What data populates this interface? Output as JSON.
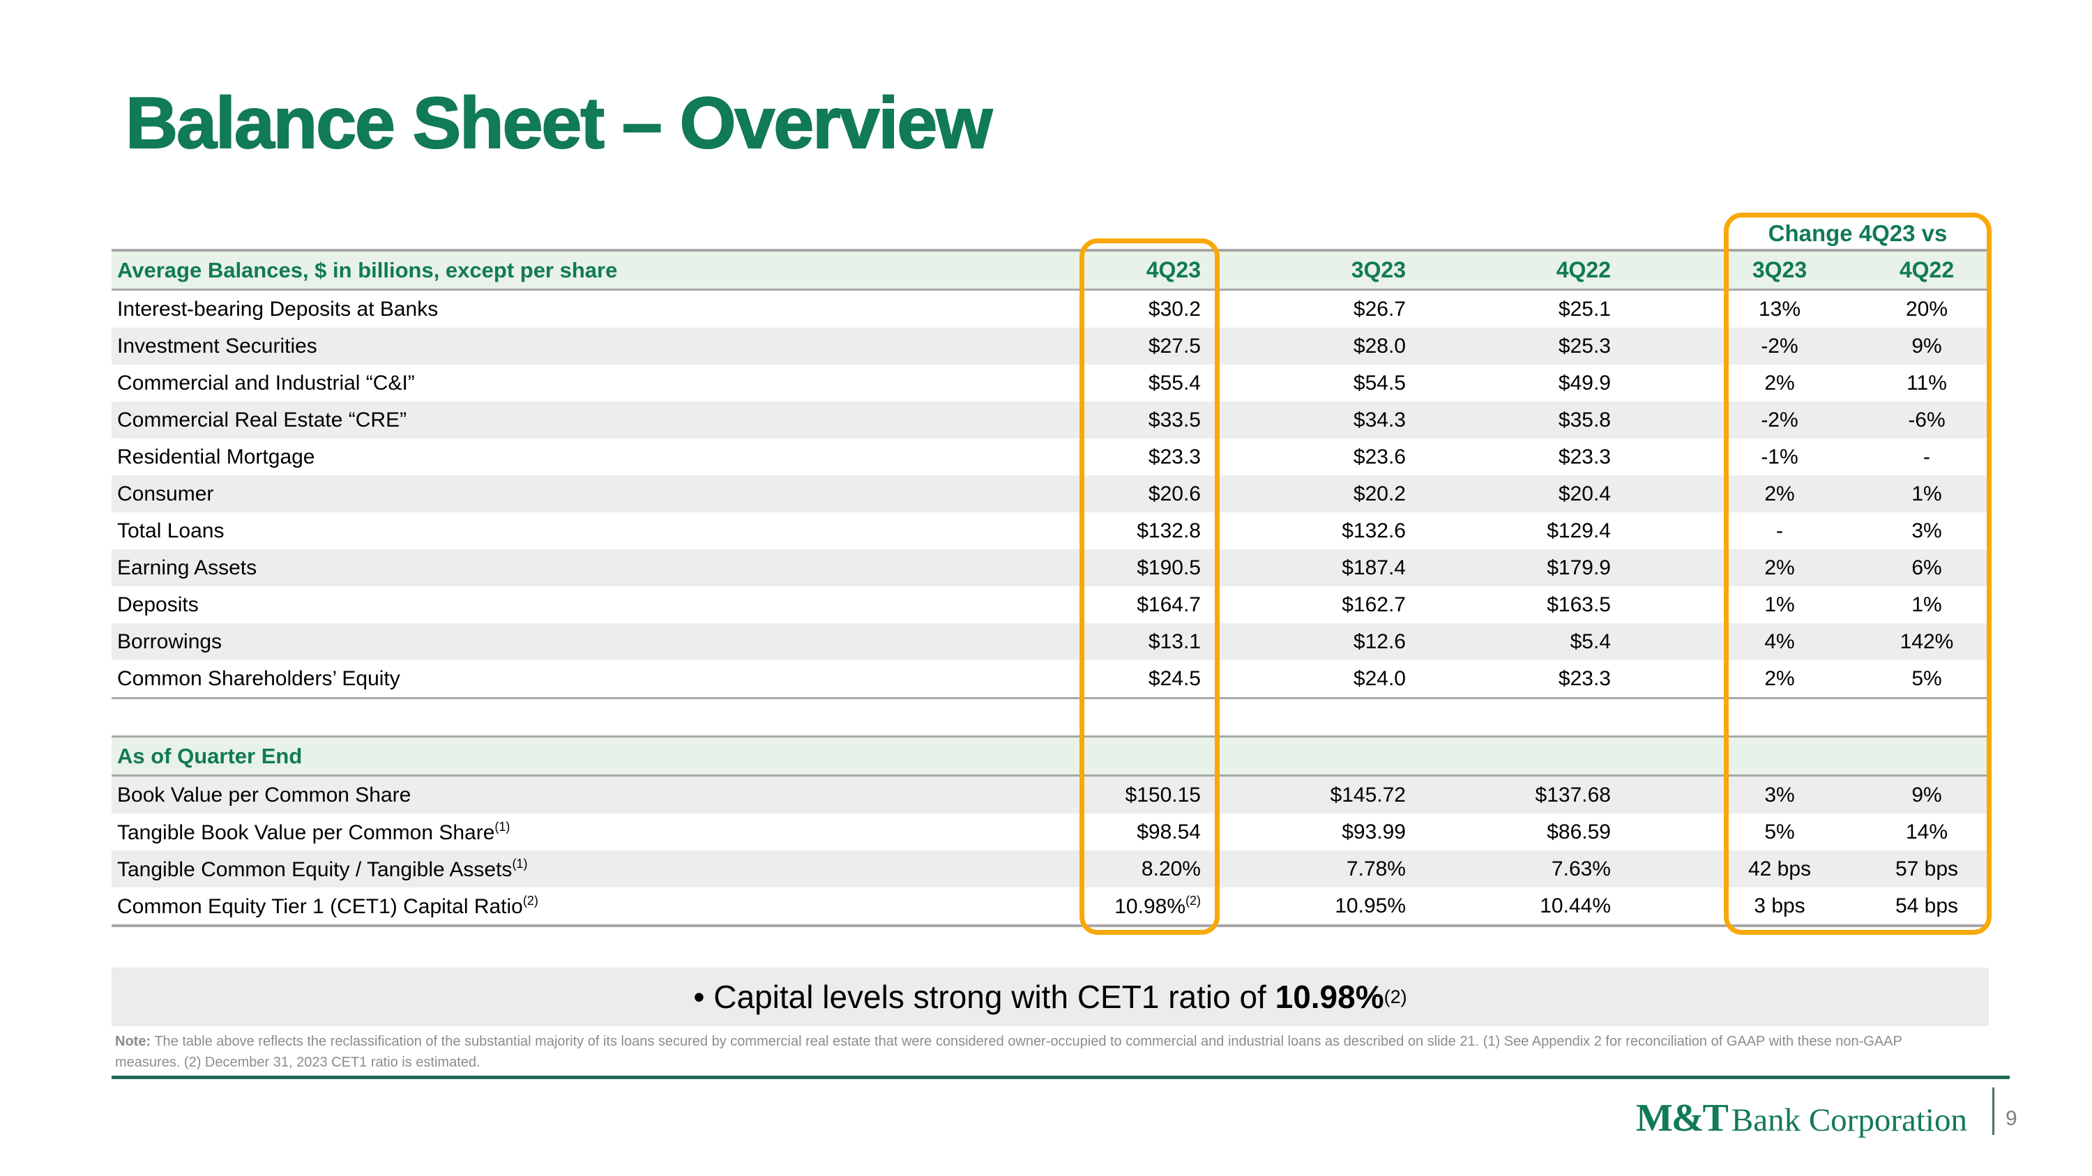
{
  "title": "Balance Sheet – Overview",
  "colors": {
    "brand_green": "#117A56",
    "band_green_bg": "#E8F2E8",
    "row_stripe_gray": "#EDEDED",
    "line_gray": "#A8A8A8",
    "highlight_gold": "#F9A80A",
    "note_gray": "#8C8C8C",
    "callout_bg": "#ECECEC",
    "divider_green": "#1F6B58"
  },
  "table": {
    "header_label": "Average Balances, $ in billions, except per share",
    "columns": [
      "4Q23",
      "3Q23",
      "4Q22"
    ],
    "change_header": "Change 4Q23 vs",
    "change_columns": [
      "3Q23",
      "4Q22"
    ],
    "sections": [
      {
        "label": "",
        "stripe_start": "even",
        "rows": [
          {
            "label": "Interest-bearing Deposits at Banks",
            "values": [
              "$30.2",
              "$26.7",
              "$25.1"
            ],
            "changes": [
              "13%",
              "20%"
            ]
          },
          {
            "label": "Investment Securities",
            "values": [
              "$27.5",
              "$28.0",
              "$25.3"
            ],
            "changes": [
              "-2%",
              "9%"
            ]
          },
          {
            "label": "Commercial and Industrial “C&I”",
            "values": [
              "$55.4",
              "$54.5",
              "$49.9"
            ],
            "changes": [
              "2%",
              "11%"
            ]
          },
          {
            "label": "Commercial Real Estate “CRE”",
            "values": [
              "$33.5",
              "$34.3",
              "$35.8"
            ],
            "changes": [
              "-2%",
              "-6%"
            ]
          },
          {
            "label": "Residential Mortgage",
            "values": [
              "$23.3",
              "$23.6",
              "$23.3"
            ],
            "changes": [
              "-1%",
              "-"
            ]
          },
          {
            "label": "Consumer",
            "values": [
              "$20.6",
              "$20.2",
              "$20.4"
            ],
            "changes": [
              "2%",
              "1%"
            ]
          },
          {
            "label": "Total Loans",
            "values": [
              "$132.8",
              "$132.6",
              "$129.4"
            ],
            "changes": [
              "-",
              "3%"
            ]
          },
          {
            "label": "Earning Assets",
            "values": [
              "$190.5",
              "$187.4",
              "$179.9"
            ],
            "changes": [
              "2%",
              "6%"
            ]
          },
          {
            "label": "Deposits",
            "values": [
              "$164.7",
              "$162.7",
              "$163.5"
            ],
            "changes": [
              "1%",
              "1%"
            ]
          },
          {
            "label": "Borrowings",
            "values": [
              "$13.1",
              "$12.6",
              "$5.4"
            ],
            "changes": [
              "4%",
              "142%"
            ]
          },
          {
            "label": "Common Shareholders’ Equity",
            "values": [
              "$24.5",
              "$24.0",
              "$23.3"
            ],
            "changes": [
              "2%",
              "5%"
            ]
          }
        ]
      },
      {
        "label": "As of Quarter End",
        "stripe_start": "odd",
        "rows": [
          {
            "label": "Book Value per Common Share",
            "values": [
              "$150.15",
              "$145.72",
              "$137.68"
            ],
            "changes": [
              "3%",
              "9%"
            ]
          },
          {
            "label": "Tangible Book Value per Common Share",
            "label_sup": "(1)",
            "values": [
              "$98.54",
              "$93.99",
              "$86.59"
            ],
            "changes": [
              "5%",
              "14%"
            ]
          },
          {
            "label": "Tangible Common Equity / Tangible Assets",
            "label_sup": "(1)",
            "values": [
              "8.20%",
              "7.78%",
              "7.63%"
            ],
            "changes": [
              "42 bps",
              "57 bps"
            ]
          },
          {
            "label": "Common Equity Tier 1 (CET1) Capital Ratio",
            "label_sup": "(2)",
            "values": [
              "10.98%",
              "10.95%",
              "10.44%"
            ],
            "value_sup": "(2)",
            "changes": [
              "3 bps",
              "54 bps"
            ]
          }
        ]
      }
    ]
  },
  "bullet": {
    "prefix": "• Capital levels strong with CET1 ratio of ",
    "highlight": "10.98%",
    "sup": "(2)"
  },
  "note": {
    "label": "Note:",
    "lines": [
      "The table above reflects the reclassification of the substantial majority of its loans secured by commercial real estate that were considered owner-occupied to commercial and industrial loans as described on slide 21. (1) See Appendix 2 for reconciliation of GAAP with these non-GAAP",
      "measures. (2) December 31, 2023 CET1 ratio is estimated."
    ]
  },
  "footer": {
    "logo_mt": "M&T",
    "logo_rest": "Bank Corporation",
    "page": "9"
  }
}
